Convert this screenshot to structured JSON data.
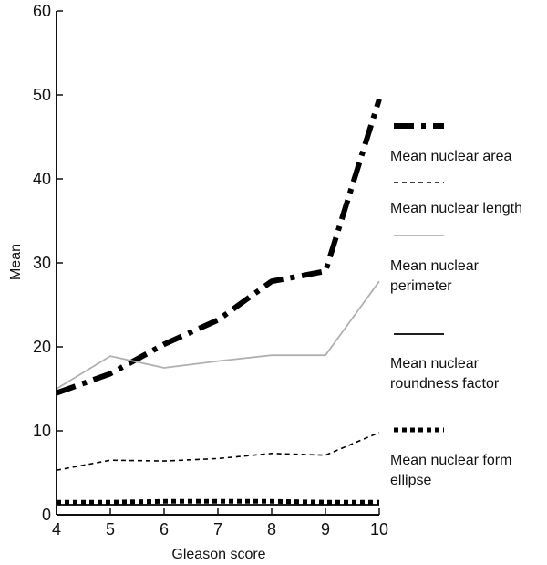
{
  "chart_data": {
    "type": "line",
    "title": "",
    "xlabel": "Gleason score",
    "ylabel": "Mean",
    "x": [
      4,
      5,
      6,
      7,
      8,
      9,
      10
    ],
    "xlim": [
      4,
      10
    ],
    "ylim": [
      0,
      60
    ],
    "xticks": [
      "4",
      "5",
      "6",
      "7",
      "8",
      "9",
      "10"
    ],
    "yticks": [
      "0",
      "10",
      "20",
      "30",
      "40",
      "50",
      "60"
    ],
    "grid": false,
    "legend_position": "right",
    "series": [
      {
        "name": "Mean nuclear area",
        "style": "dash-dot",
        "color": "#000000",
        "values": [
          14.5,
          16.8,
          20.3,
          23.2,
          27.8,
          29.0,
          49.5
        ]
      },
      {
        "name": "Mean nuclear length",
        "style": "dashed",
        "color": "#000000",
        "values": [
          5.3,
          6.5,
          6.4,
          6.7,
          7.3,
          7.1,
          9.8
        ]
      },
      {
        "name": "Mean nuclear perimeter",
        "style": "solid",
        "color": "#b0b0b0",
        "values": [
          15.0,
          18.9,
          17.5,
          18.3,
          19.0,
          19.0,
          27.8
        ]
      },
      {
        "name": "Mean nuclear roundness factor",
        "style": "solid",
        "color": "#000000",
        "values": [
          1.2,
          1.2,
          1.2,
          1.2,
          1.2,
          1.2,
          1.2
        ]
      },
      {
        "name": "Mean nuclear form ellipse",
        "style": "dotted",
        "color": "#000000",
        "values": [
          1.5,
          1.5,
          1.6,
          1.6,
          1.6,
          1.5,
          1.5
        ]
      }
    ]
  },
  "legend_lines": [
    [
      "Mean nuclear area"
    ],
    [
      "Mean nuclear length"
    ],
    [
      "Mean nuclear",
      "perimeter"
    ],
    [
      "Mean nuclear",
      "roundness factor"
    ],
    [
      "Mean nuclear form",
      "ellipse"
    ]
  ]
}
